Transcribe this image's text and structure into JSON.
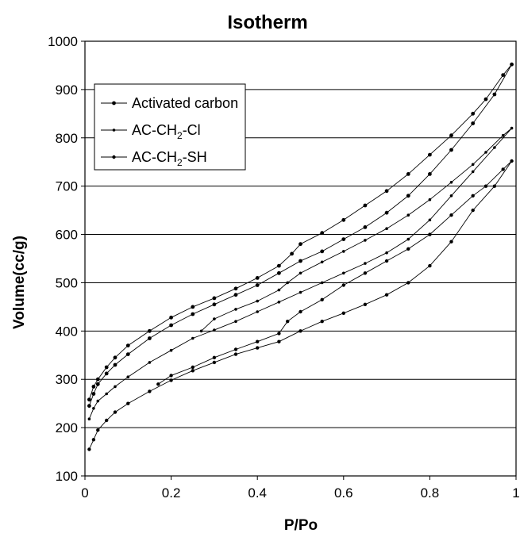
{
  "chart_data": {
    "type": "line",
    "title": "Isotherm",
    "xlabel": "P/Po",
    "ylabel": "Volume(cc/g)",
    "xlim": [
      0,
      1
    ],
    "ylim": [
      100,
      1000
    ],
    "xticks": [
      "0",
      "0.2",
      "0.4",
      "0.6",
      "0.8",
      "1"
    ],
    "yticks": [
      "100",
      "200",
      "300",
      "400",
      "500",
      "600",
      "700",
      "800",
      "900",
      "1000"
    ],
    "grid": "horizontal",
    "legend_position": "top-left",
    "series": [
      {
        "name": "Activated carbon",
        "legend": {
          "main": "Activated carbon",
          "sub": "",
          "tail": ""
        },
        "marker_size": 2.4,
        "points": [
          [
            0.01,
            245
          ],
          [
            0.02,
            270
          ],
          [
            0.03,
            290
          ],
          [
            0.05,
            312
          ],
          [
            0.07,
            330
          ],
          [
            0.1,
            352
          ],
          [
            0.15,
            385
          ],
          [
            0.2,
            412
          ],
          [
            0.25,
            435
          ],
          [
            0.3,
            455
          ],
          [
            0.35,
            475
          ],
          [
            0.4,
            495
          ],
          [
            0.45,
            520
          ],
          [
            0.5,
            545
          ],
          [
            0.55,
            565
          ],
          [
            0.6,
            590
          ],
          [
            0.65,
            615
          ],
          [
            0.7,
            645
          ],
          [
            0.75,
            680
          ],
          [
            0.8,
            725
          ],
          [
            0.85,
            775
          ],
          [
            0.9,
            830
          ],
          [
            0.95,
            890
          ],
          [
            0.99,
            952
          ],
          [
            0.97,
            930
          ],
          [
            0.93,
            880
          ],
          [
            0.9,
            850
          ],
          [
            0.85,
            805
          ],
          [
            0.8,
            765
          ],
          [
            0.75,
            725
          ],
          [
            0.7,
            690
          ],
          [
            0.65,
            660
          ],
          [
            0.6,
            630
          ],
          [
            0.55,
            603
          ],
          [
            0.5,
            580
          ],
          [
            0.48,
            560
          ],
          [
            0.45,
            535
          ],
          [
            0.4,
            510
          ],
          [
            0.35,
            488
          ],
          [
            0.3,
            468
          ],
          [
            0.25,
            450
          ],
          [
            0.2,
            428
          ],
          [
            0.15,
            400
          ],
          [
            0.1,
            370
          ],
          [
            0.07,
            345
          ],
          [
            0.05,
            325
          ],
          [
            0.03,
            300
          ],
          [
            0.02,
            285
          ],
          [
            0.01,
            258
          ]
        ]
      },
      {
        "name": "AC-CH2-Cl",
        "legend": {
          "main": "AC-CH",
          "sub": "2",
          "tail": "-Cl"
        },
        "marker_size": 1.8,
        "points": [
          [
            0.01,
            218
          ],
          [
            0.02,
            240
          ],
          [
            0.03,
            255
          ],
          [
            0.05,
            270
          ],
          [
            0.07,
            285
          ],
          [
            0.1,
            305
          ],
          [
            0.15,
            335
          ],
          [
            0.2,
            360
          ],
          [
            0.25,
            385
          ],
          [
            0.3,
            402
          ],
          [
            0.35,
            420
          ],
          [
            0.4,
            440
          ],
          [
            0.45,
            460
          ],
          [
            0.5,
            480
          ],
          [
            0.55,
            500
          ],
          [
            0.6,
            520
          ],
          [
            0.65,
            540
          ],
          [
            0.7,
            562
          ],
          [
            0.75,
            590
          ],
          [
            0.8,
            630
          ],
          [
            0.85,
            680
          ],
          [
            0.9,
            730
          ],
          [
            0.95,
            780
          ],
          [
            0.99,
            820
          ],
          [
            0.97,
            805
          ],
          [
            0.93,
            770
          ],
          [
            0.9,
            745
          ],
          [
            0.85,
            708
          ],
          [
            0.8,
            672
          ],
          [
            0.75,
            640
          ],
          [
            0.7,
            612
          ],
          [
            0.65,
            588
          ],
          [
            0.6,
            565
          ],
          [
            0.55,
            543
          ],
          [
            0.5,
            520
          ],
          [
            0.47,
            500
          ],
          [
            0.45,
            485
          ],
          [
            0.4,
            462
          ],
          [
            0.35,
            445
          ],
          [
            0.3,
            425
          ],
          [
            0.27,
            400
          ]
        ]
      },
      {
        "name": "AC-CH2-SH",
        "legend": {
          "main": "AC-CH",
          "sub": "2",
          "tail": "-SH"
        },
        "marker_size": 2.2,
        "points": [
          [
            0.01,
            155
          ],
          [
            0.02,
            175
          ],
          [
            0.03,
            195
          ],
          [
            0.05,
            215
          ],
          [
            0.07,
            232
          ],
          [
            0.1,
            250
          ],
          [
            0.15,
            275
          ],
          [
            0.2,
            298
          ],
          [
            0.25,
            318
          ],
          [
            0.3,
            335
          ],
          [
            0.35,
            352
          ],
          [
            0.4,
            365
          ],
          [
            0.45,
            378
          ],
          [
            0.5,
            400
          ],
          [
            0.55,
            420
          ],
          [
            0.6,
            437
          ],
          [
            0.65,
            455
          ],
          [
            0.7,
            475
          ],
          [
            0.75,
            500
          ],
          [
            0.8,
            535
          ],
          [
            0.85,
            585
          ],
          [
            0.9,
            650
          ],
          [
            0.95,
            700
          ],
          [
            0.99,
            752
          ],
          [
            0.97,
            735
          ],
          [
            0.93,
            700
          ],
          [
            0.9,
            680
          ],
          [
            0.85,
            640
          ],
          [
            0.8,
            600
          ],
          [
            0.75,
            570
          ],
          [
            0.7,
            545
          ],
          [
            0.65,
            520
          ],
          [
            0.6,
            495
          ],
          [
            0.55,
            465
          ],
          [
            0.5,
            440
          ],
          [
            0.47,
            420
          ],
          [
            0.45,
            395
          ],
          [
            0.4,
            378
          ],
          [
            0.35,
            362
          ],
          [
            0.3,
            345
          ],
          [
            0.25,
            325
          ],
          [
            0.2,
            308
          ],
          [
            0.17,
            290
          ]
        ]
      }
    ]
  }
}
